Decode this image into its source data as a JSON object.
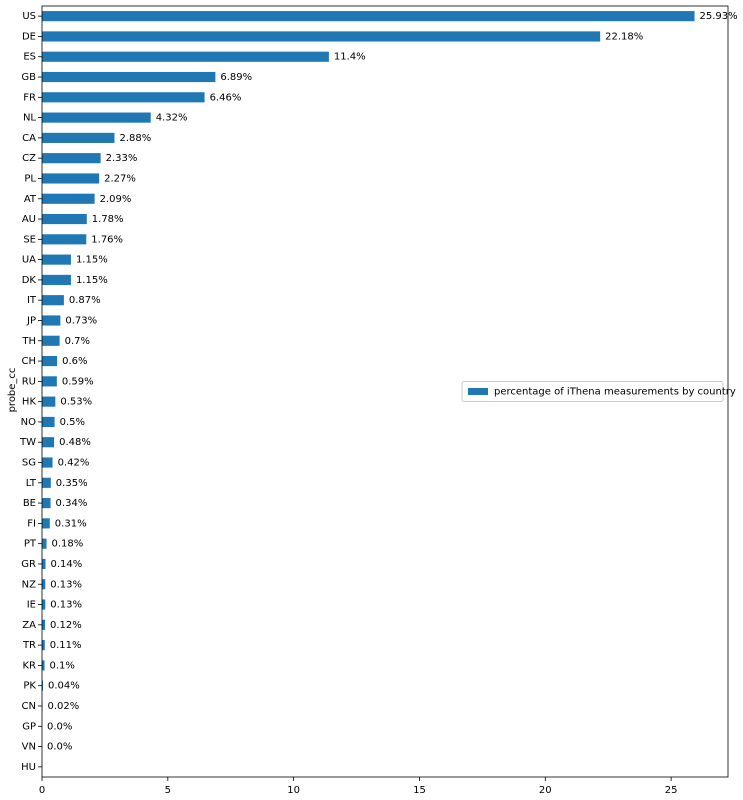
{
  "chart_data": {
    "type": "barh",
    "categories": [
      "US",
      "DE",
      "ES",
      "GB",
      "FR",
      "NL",
      "CA",
      "CZ",
      "PL",
      "AT",
      "AU",
      "SE",
      "UA",
      "DK",
      "IT",
      "JP",
      "TH",
      "CH",
      "RU",
      "HK",
      "NO",
      "TW",
      "SG",
      "LT",
      "BE",
      "FI",
      "PT",
      "GR",
      "NZ",
      "IE",
      "ZA",
      "TR",
      "KR",
      "PK",
      "CN",
      "GP",
      "VN",
      "HU"
    ],
    "series": [
      {
        "name": "percentage of iThena measurements by country",
        "color": "#1f77b4",
        "values": [
          25.93,
          22.18,
          11.4,
          6.89,
          6.46,
          4.32,
          2.88,
          2.33,
          2.27,
          2.09,
          1.78,
          1.76,
          1.15,
          1.15,
          0.87,
          0.73,
          0.7,
          0.6,
          0.59,
          0.53,
          0.5,
          0.48,
          0.42,
          0.35,
          0.34,
          0.31,
          0.18,
          0.14,
          0.13,
          0.13,
          0.12,
          0.11,
          0.1,
          0.04,
          0.02,
          0.0,
          0.0,
          0
        ],
        "value_labels": [
          "25.93%",
          "22.18%",
          "11.4%",
          "6.89%",
          "6.46%",
          "4.32%",
          "2.88%",
          "2.33%",
          "2.27%",
          "2.09%",
          "1.78%",
          "1.76%",
          "1.15%",
          "1.15%",
          "0.87%",
          "0.73%",
          "0.7%",
          "0.6%",
          "0.59%",
          "0.53%",
          "0.5%",
          "0.48%",
          "0.42%",
          "0.35%",
          "0.34%",
          "0.31%",
          "0.18%",
          "0.14%",
          "0.13%",
          "0.13%",
          "0.12%",
          "0.11%",
          "0.1%",
          "0.04%",
          "0.02%",
          "0.0%",
          "0.0%",
          null
        ]
      }
    ],
    "ylabel": "probe_cc",
    "xlim": [
      0,
      27.26
    ],
    "xticks": [
      0,
      5,
      10,
      15,
      20,
      25
    ],
    "legend": "right"
  }
}
